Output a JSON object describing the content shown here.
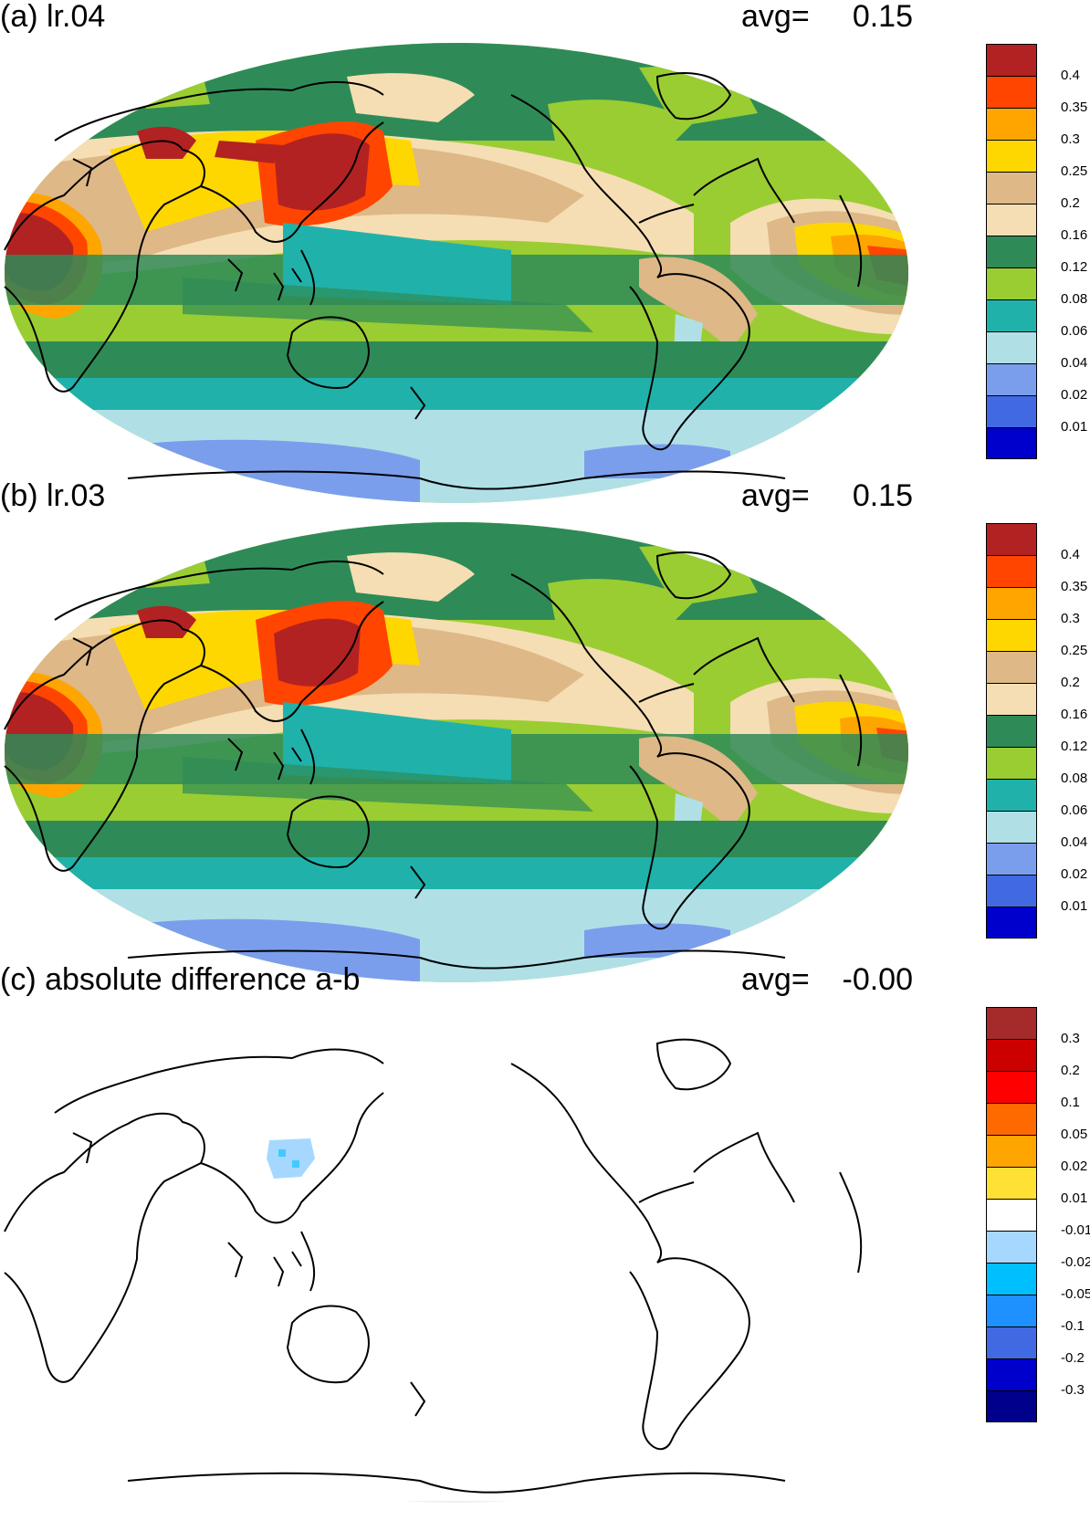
{
  "panels": [
    {
      "title": "(a) lr.04",
      "avg_label": "avg=",
      "avg_value": "0.15",
      "colorbar": {
        "colors": [
          "#b22222",
          "#ff4500",
          "#ffa500",
          "#ffd700",
          "#deb887",
          "#f5deb3",
          "#2e8b57",
          "#9acd32",
          "#20b2aa",
          "#b0e0e6",
          "#7b9eec",
          "#4169e1",
          "#0000cd"
        ],
        "labels": [
          "0.4",
          "0.35",
          "0.3",
          "0.25",
          "0.2",
          "0.16",
          "0.12",
          "0.08",
          "0.06",
          "0.04",
          "0.02",
          "0.01"
        ]
      }
    },
    {
      "title": "(b) lr.03",
      "avg_label": "avg=",
      "avg_value": "0.15",
      "colorbar": {
        "colors": [
          "#b22222",
          "#ff4500",
          "#ffa500",
          "#ffd700",
          "#deb887",
          "#f5deb3",
          "#2e8b57",
          "#9acd32",
          "#20b2aa",
          "#b0e0e6",
          "#7b9eec",
          "#4169e1",
          "#0000cd"
        ],
        "labels": [
          "0.4",
          "0.35",
          "0.3",
          "0.25",
          "0.2",
          "0.16",
          "0.12",
          "0.08",
          "0.06",
          "0.04",
          "0.02",
          "0.01"
        ]
      }
    },
    {
      "title": "(c) absolute difference a-b",
      "avg_label": "avg=",
      "avg_value": "-0.00",
      "colorbar": {
        "colors": [
          "#a52a2a",
          "#cd0000",
          "#ff0000",
          "#ff6a00",
          "#ffa500",
          "#ffe135",
          "#ffffff",
          "#a6d8ff",
          "#00bfff",
          "#1e90ff",
          "#4169e1",
          "#0000cd",
          "#00008b"
        ],
        "labels": [
          "0.3",
          "0.2",
          "0.1",
          "0.05",
          "0.02",
          "0.01",
          "-0.01",
          "-0.02",
          "-0.05",
          "-0.1",
          "-0.2",
          "-0.3"
        ]
      }
    }
  ]
}
